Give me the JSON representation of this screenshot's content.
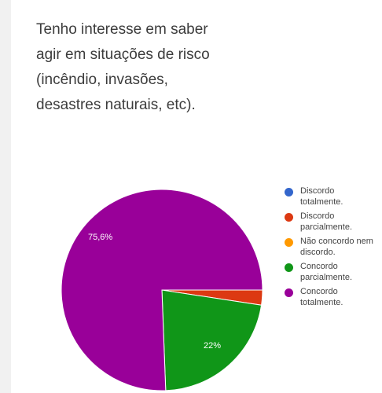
{
  "question": {
    "lines": [
      "Tenho interesse em saber",
      "agir em situações de risco",
      "(incêndio, invasões,",
      "desastres naturais, etc)."
    ]
  },
  "chart_data": {
    "type": "pie",
    "slices": [
      {
        "label": "Discordo totalmente.",
        "value": 0.0,
        "color": "#3366cc"
      },
      {
        "label": "Discordo parcialmente.",
        "value": 2.4,
        "color": "#dc3912"
      },
      {
        "label": "Não concordo nem discordo.",
        "value": 0.0,
        "color": "#ff9900"
      },
      {
        "label": "Concordo parcialmente.",
        "value": 22.0,
        "color": "#109618"
      },
      {
        "label": "Concordo totalmente.",
        "value": 75.6,
        "color": "#990099"
      }
    ],
    "data_labels": [
      "75,6%",
      "22%"
    ],
    "legend_position": "right"
  }
}
